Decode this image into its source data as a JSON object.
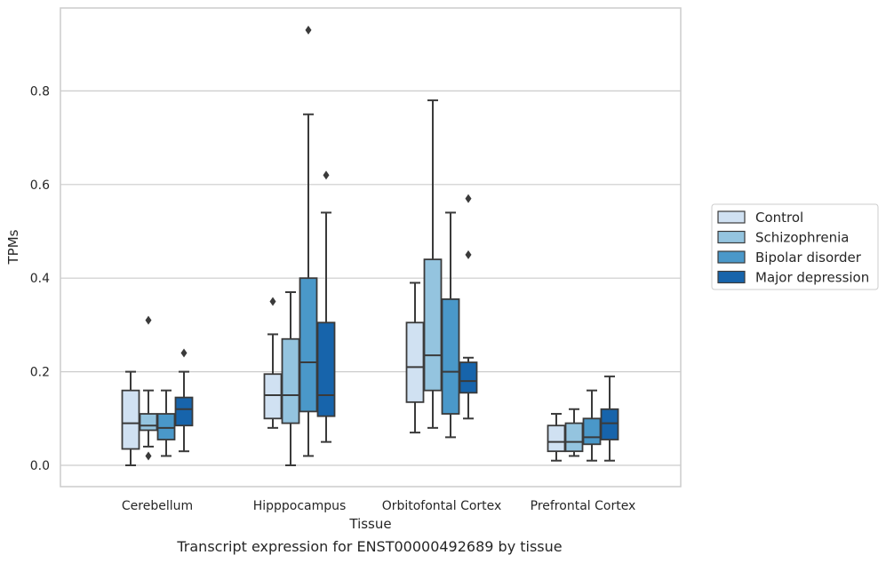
{
  "caption": "Transcript expression for ENST00000492689 by tissue",
  "chart_data": {
    "type": "box",
    "xlabel": "Tissue",
    "ylabel": "TPMs",
    "categories": [
      "Cerebellum",
      "Hipppocampus",
      "Orbitofontal Cortex",
      "Prefrontal Cortex"
    ],
    "ylim": [
      -0.045,
      0.98
    ],
    "yticks": [
      0.0,
      0.2,
      0.4,
      0.6,
      0.8
    ],
    "ytick_labels": [
      "0.0",
      "0.2",
      "0.4",
      "0.6",
      "0.8"
    ],
    "grid": true,
    "legend_position": "right",
    "series": [
      {
        "name": "Control",
        "color": "#d0e1f2",
        "boxes": [
          {
            "whislo": 0.0,
            "q1": 0.035,
            "med": 0.09,
            "q3": 0.16,
            "whishi": 0.2,
            "fliers": []
          },
          {
            "whislo": 0.08,
            "q1": 0.1,
            "med": 0.15,
            "q3": 0.195,
            "whishi": 0.28,
            "fliers": [
              0.35
            ]
          },
          {
            "whislo": 0.07,
            "q1": 0.135,
            "med": 0.21,
            "q3": 0.305,
            "whishi": 0.39,
            "fliers": []
          },
          {
            "whislo": 0.01,
            "q1": 0.03,
            "med": 0.05,
            "q3": 0.085,
            "whishi": 0.11,
            "fliers": []
          }
        ]
      },
      {
        "name": "Schizophrenia",
        "color": "#94c4df",
        "boxes": [
          {
            "whislo": 0.04,
            "q1": 0.075,
            "med": 0.085,
            "q3": 0.11,
            "whishi": 0.16,
            "fliers": [
              0.02,
              0.31
            ]
          },
          {
            "whislo": 0.0,
            "q1": 0.09,
            "med": 0.15,
            "q3": 0.27,
            "whishi": 0.37,
            "fliers": []
          },
          {
            "whislo": 0.08,
            "q1": 0.16,
            "med": 0.235,
            "q3": 0.44,
            "whishi": 0.78,
            "fliers": []
          },
          {
            "whislo": 0.02,
            "q1": 0.03,
            "med": 0.05,
            "q3": 0.09,
            "whishi": 0.12,
            "fliers": []
          }
        ]
      },
      {
        "name": "Bipolar disorder",
        "color": "#4a98c9",
        "boxes": [
          {
            "whislo": 0.02,
            "q1": 0.055,
            "med": 0.08,
            "q3": 0.11,
            "whishi": 0.16,
            "fliers": []
          },
          {
            "whislo": 0.02,
            "q1": 0.115,
            "med": 0.22,
            "q3": 0.4,
            "whishi": 0.75,
            "fliers": [
              0.93
            ]
          },
          {
            "whislo": 0.06,
            "q1": 0.11,
            "med": 0.2,
            "q3": 0.355,
            "whishi": 0.54,
            "fliers": []
          },
          {
            "whislo": 0.01,
            "q1": 0.045,
            "med": 0.06,
            "q3": 0.1,
            "whishi": 0.16,
            "fliers": []
          }
        ]
      },
      {
        "name": "Major depression",
        "color": "#1764ab",
        "boxes": [
          {
            "whislo": 0.03,
            "q1": 0.085,
            "med": 0.12,
            "q3": 0.145,
            "whishi": 0.2,
            "fliers": [
              0.24
            ]
          },
          {
            "whislo": 0.05,
            "q1": 0.105,
            "med": 0.15,
            "q3": 0.305,
            "whishi": 0.54,
            "fliers": [
              0.62
            ]
          },
          {
            "whislo": 0.1,
            "q1": 0.155,
            "med": 0.18,
            "q3": 0.22,
            "whishi": 0.23,
            "fliers": [
              0.45,
              0.57
            ]
          },
          {
            "whislo": 0.01,
            "q1": 0.055,
            "med": 0.09,
            "q3": 0.12,
            "whishi": 0.19,
            "fliers": []
          }
        ]
      }
    ]
  }
}
